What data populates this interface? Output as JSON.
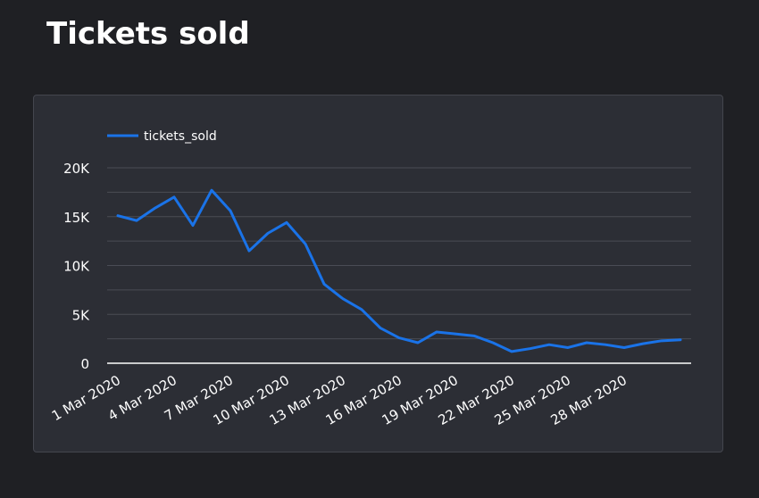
{
  "page": {
    "title": "Tickets sold"
  },
  "chart_data": {
    "type": "line",
    "title": "Tickets sold",
    "xlabel": "",
    "ylabel": "",
    "legend_position": "top-left",
    "grid": true,
    "ylim": [
      0,
      20000
    ],
    "y_ticks": [
      0,
      5000,
      10000,
      15000,
      20000
    ],
    "y_tick_labels": [
      "0",
      "5K",
      "10K",
      "15K",
      "20K"
    ],
    "x_tick_labels": [
      "1 Mar 2020",
      "4 Mar 2020",
      "7 Mar 2020",
      "10 Mar 2020",
      "13 Mar 2020",
      "16 Mar 2020",
      "19 Mar 2020",
      "22 Mar 2020",
      "25 Mar 2020",
      "28 Mar 2020"
    ],
    "x": [
      "1 Mar 2020",
      "2 Mar 2020",
      "3 Mar 2020",
      "4 Mar 2020",
      "5 Mar 2020",
      "6 Mar 2020",
      "7 Mar 2020",
      "8 Mar 2020",
      "9 Mar 2020",
      "10 Mar 2020",
      "11 Mar 2020",
      "12 Mar 2020",
      "13 Mar 2020",
      "14 Mar 2020",
      "15 Mar 2020",
      "16 Mar 2020",
      "17 Mar 2020",
      "18 Mar 2020",
      "19 Mar 2020",
      "20 Mar 2020",
      "21 Mar 2020",
      "22 Mar 2020",
      "23 Mar 2020",
      "24 Mar 2020",
      "25 Mar 2020",
      "26 Mar 2020",
      "27 Mar 2020",
      "28 Mar 2020",
      "29 Mar 2020",
      "30 Mar 2020",
      "31 Mar 2020"
    ],
    "series": [
      {
        "name": "tickets_sold",
        "color": "#1a73e8",
        "values": [
          15100,
          14600,
          15900,
          17000,
          14100,
          17700,
          15600,
          11500,
          13300,
          14400,
          12200,
          8100,
          6600,
          5500,
          3600,
          2600,
          2100,
          3200,
          3000,
          2800,
          2100,
          1200,
          1500,
          1900,
          1600,
          2100,
          1900,
          1600,
          2000,
          2300,
          2400
        ]
      }
    ]
  }
}
